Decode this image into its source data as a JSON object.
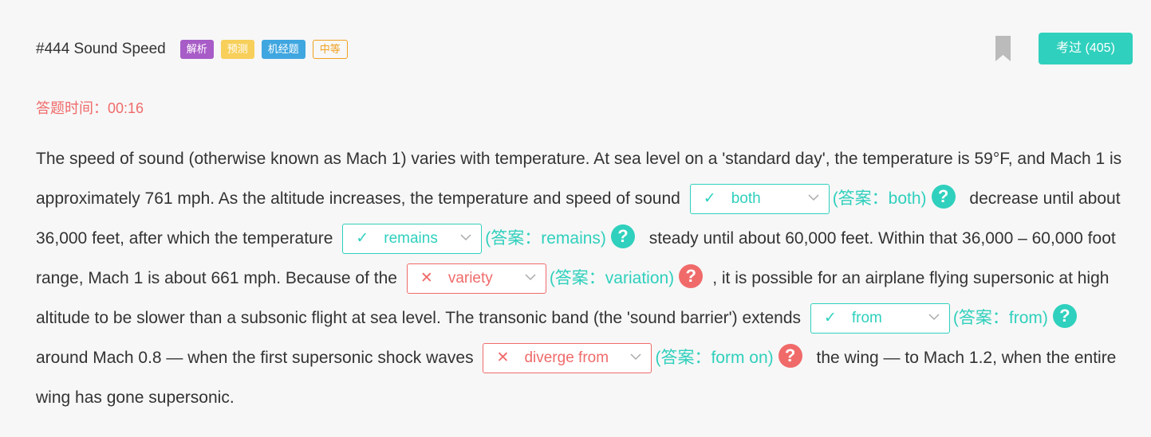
{
  "header": {
    "title": "#444 Sound Speed",
    "tags": [
      "解析",
      "预测",
      "机经题",
      "中等"
    ],
    "exam_button": "考过 (405)"
  },
  "timer": {
    "label": "答题时间：",
    "value": "00:16"
  },
  "passage": {
    "t1": "The speed of sound (otherwise known as Mach 1) varies with temperature. At sea level on a 'standard day', the temperature is 59°F, and Mach 1 is approximately 761 mph. As the altitude increases, the temperature and speed of sound",
    "t2": "decrease until about 36,000 feet, after which the temperature",
    "t3": "steady until about 60,000 feet. Within that 36,000 – 60,000 foot range, Mach 1 is about 661 mph. Because of the",
    "t4": ", it is possible for an airplane flying supersonic at high altitude to be slower than a subsonic flight at sea level. The transonic band (the 'sound barrier') extends",
    "t5": "around Mach 0.8 — when the first supersonic shock waves",
    "t6": "the wing — to Mach 1.2, when the entire wing has gone supersonic."
  },
  "blanks": [
    {
      "value": "both",
      "answer": "(答案：both)",
      "status": "correct",
      "mark": "✓"
    },
    {
      "value": "remains",
      "answer": "(答案：remains)",
      "status": "correct",
      "mark": "✓"
    },
    {
      "value": "variety",
      "answer": "(答案：variation)",
      "status": "wrong",
      "mark": "✕"
    },
    {
      "value": "from",
      "answer": "(答案：from)",
      "status": "correct",
      "mark": "✓"
    },
    {
      "value": "diverge from",
      "answer": "(答案：form on)",
      "status": "wrong",
      "mark": "✕"
    }
  ],
  "help_glyph": "?",
  "colors": {
    "accent": "#2fd0bd",
    "error": "#f06a6a",
    "text": "#333333"
  }
}
